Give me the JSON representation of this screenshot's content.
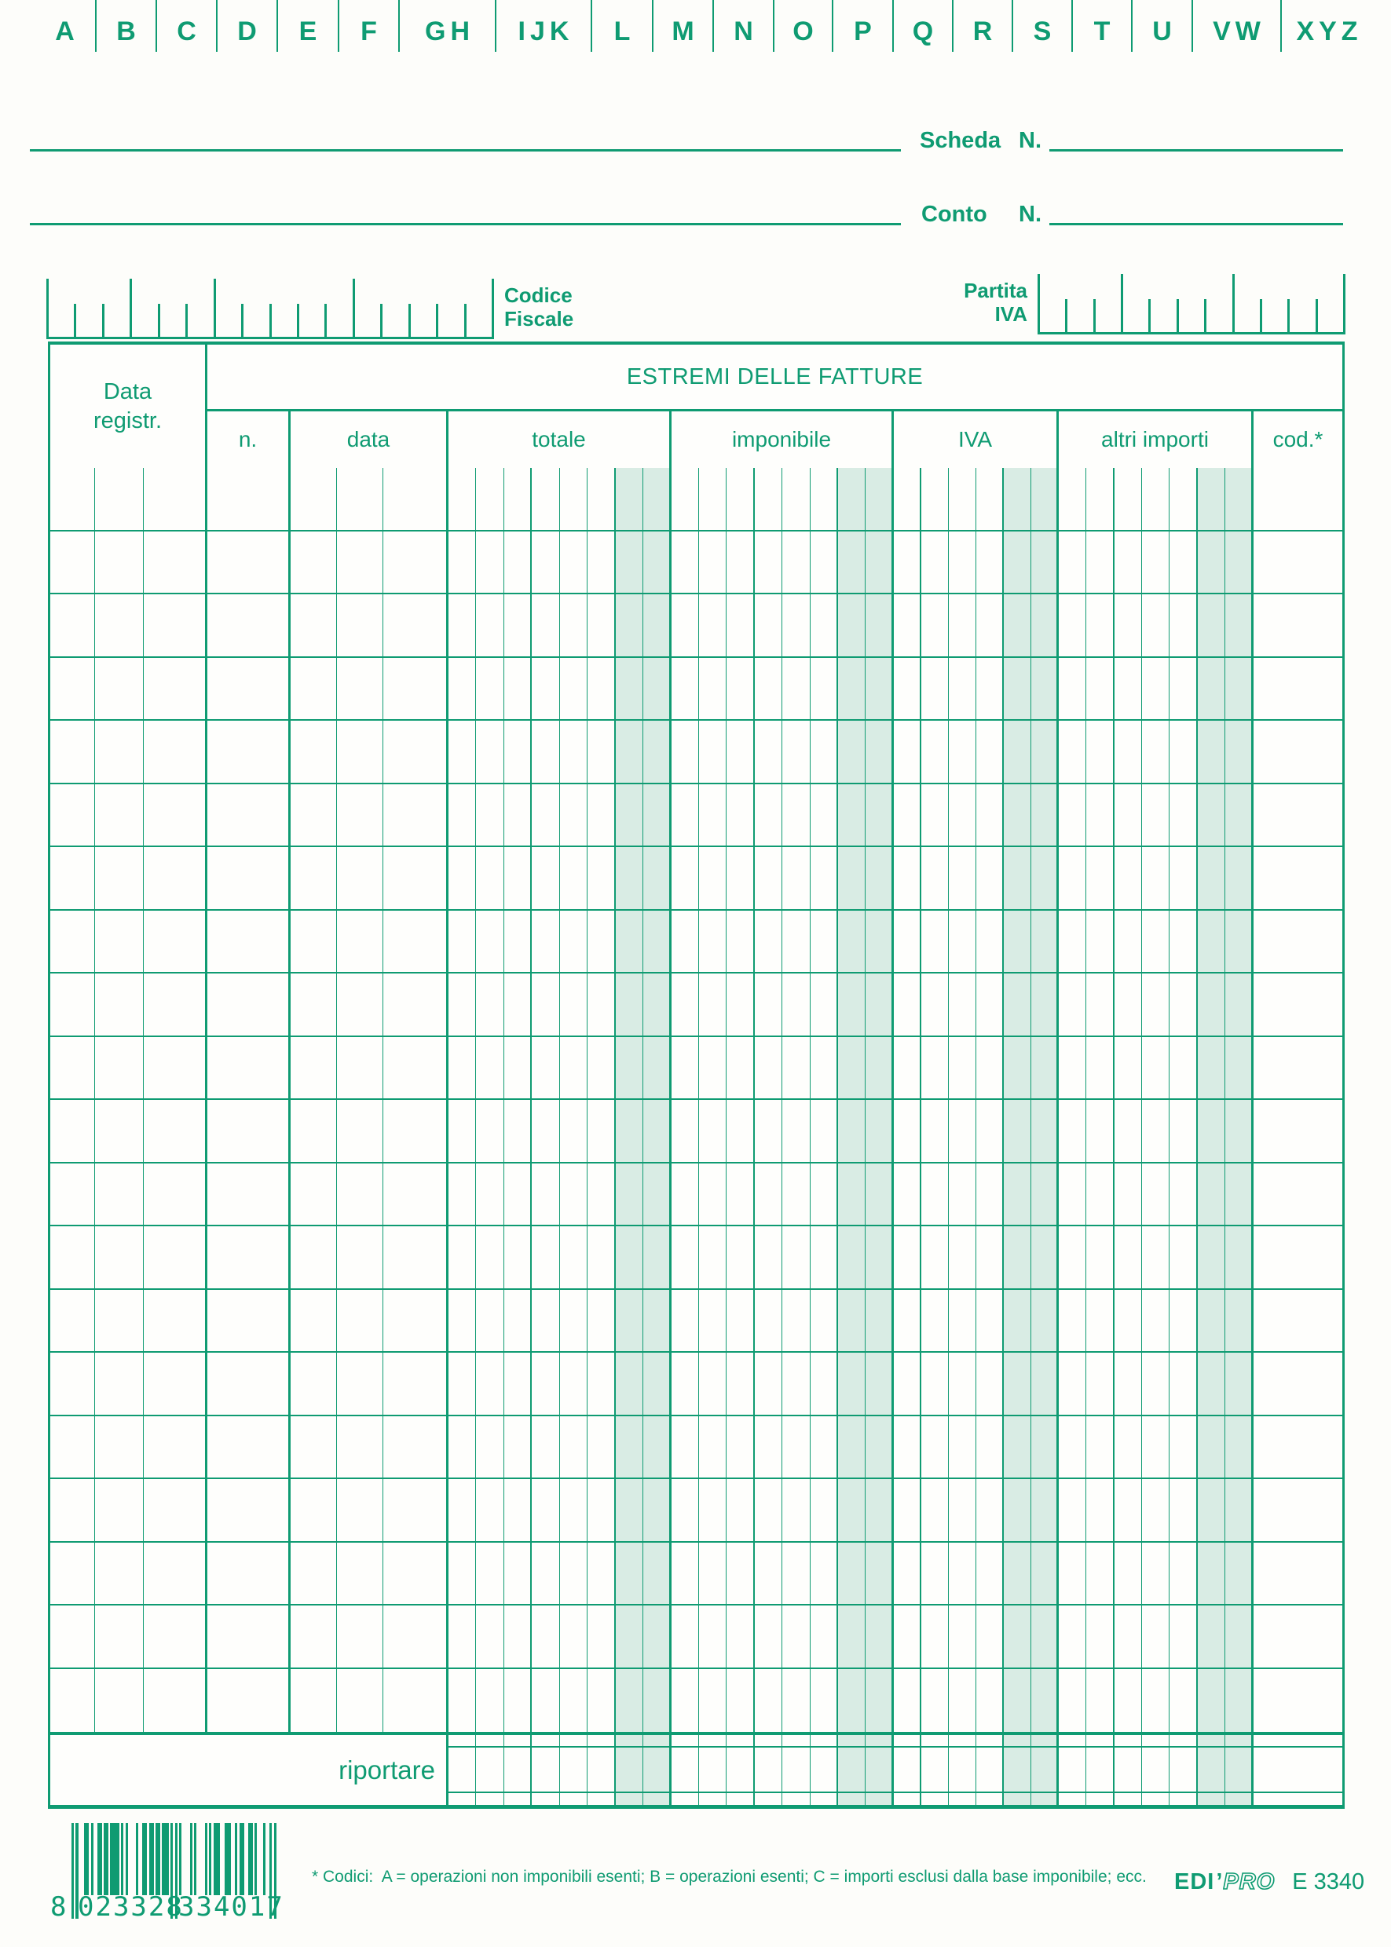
{
  "colors": {
    "green": "#0f9b72",
    "shade": "#d9ece4",
    "paper": "#fdfdfa"
  },
  "index_tabs": [
    "A",
    "B",
    "C",
    "D",
    "E",
    "F",
    "GH",
    "IJK",
    "L",
    "M",
    "N",
    "O",
    "P",
    "Q",
    "R",
    "S",
    "T",
    "U",
    "VW",
    "XYZ"
  ],
  "header_fields": {
    "scheda_label": "Scheda",
    "scheda_n": "N.",
    "conto_label": "Conto",
    "conto_n": "N.",
    "codice_fiscale_line1": "Codice",
    "codice_fiscale_line2": "Fiscale",
    "partita_iva_line1": "Partita",
    "partita_iva_line2": "IVA"
  },
  "table": {
    "corner_line1": "Data",
    "corner_line2": "registr.",
    "group_header": "ESTREMI DELLE FATTURE",
    "columns": [
      "n.",
      "data",
      "totale",
      "imponibile",
      "IVA",
      "altri importi",
      "cod.*"
    ],
    "body_row_count": 20,
    "riportare_label": "riportare"
  },
  "footer": {
    "footnote": "* Codici:  A = operazioni non imponibili esenti; B = operazioni esenti; C = importi esclusi dalla base imponibile; ecc.",
    "barcode": {
      "full_number": "8023328334017",
      "prefix_digit": "8",
      "group1": "023328",
      "group2": "334017"
    },
    "brand": {
      "bold": "EDI",
      "outline": "PRO",
      "product_code": "E 3340"
    }
  }
}
